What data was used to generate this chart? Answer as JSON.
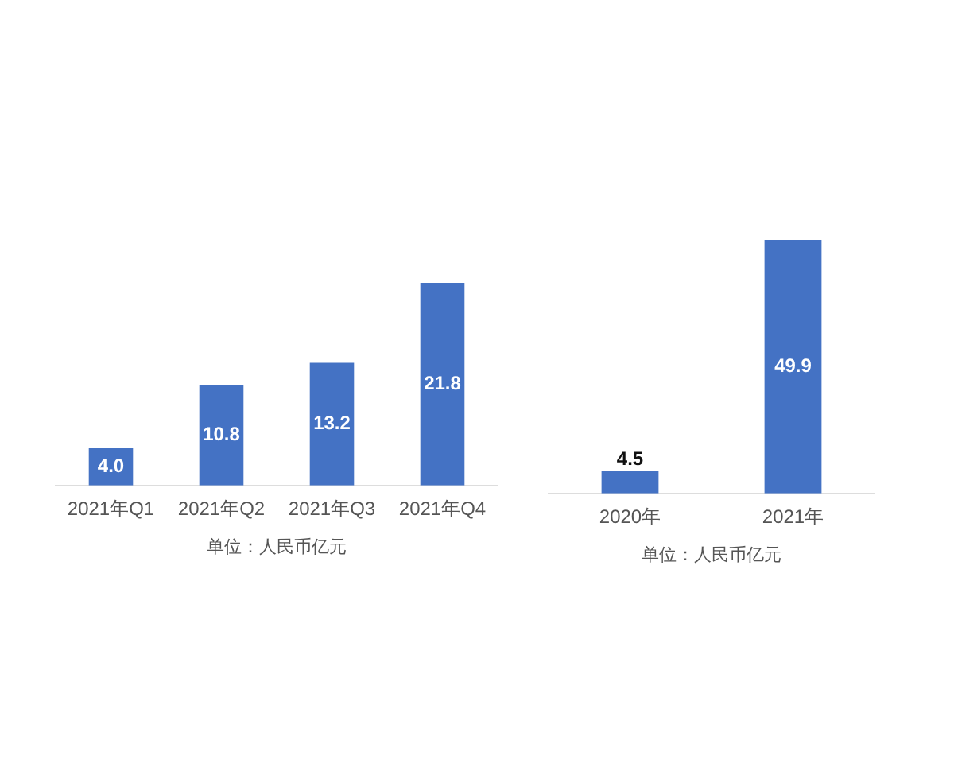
{
  "chart_data": [
    {
      "type": "bar",
      "categories": [
        "2021年Q1",
        "2021年Q2",
        "2021年Q3",
        "2021年Q4"
      ],
      "values": [
        4.0,
        10.8,
        13.2,
        21.8
      ],
      "value_labels": [
        "4.0",
        "10.8",
        "13.2",
        "21.8"
      ],
      "color": "#4472c4",
      "xlabel": "单位：人民币亿元"
    },
    {
      "type": "bar",
      "categories": [
        "2020年",
        "2021年"
      ],
      "values": [
        4.5,
        49.9
      ],
      "data_labels": true,
      "color": "#4472c4",
      "xlabel": "单位：人民币亿元"
    }
  ]
}
